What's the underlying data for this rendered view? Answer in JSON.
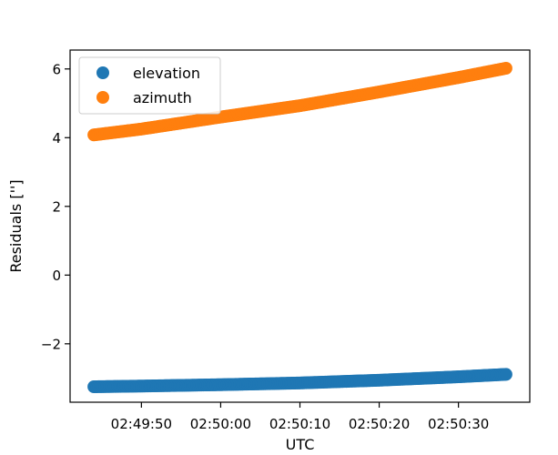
{
  "chart_data": {
    "type": "scatter",
    "title": "",
    "xlabel": "UTC",
    "ylabel": "Residuals ['']",
    "xlim": [
      "02:49:41",
      "02:50:39"
    ],
    "ylim": [
      -3.7,
      6.55
    ],
    "xticks": [
      "02:49:50",
      "02:50:00",
      "02:50:10",
      "02:50:20",
      "02:50:30"
    ],
    "yticks": [
      -2,
      0,
      2,
      4,
      6
    ],
    "ytick_labels": [
      "−2",
      "0",
      "2",
      "4",
      "6"
    ],
    "grid": false,
    "legend_position": "upper-left",
    "series": [
      {
        "name": "elevation",
        "color": "#1f77b4",
        "x_start": "02:49:44",
        "x_end": "02:50:36",
        "x": [
          "02:49:44",
          "02:49:50",
          "02:50:00",
          "02:50:10",
          "02:50:20",
          "02:50:30",
          "02:50:36"
        ],
        "y": [
          -3.25,
          -3.23,
          -3.19,
          -3.14,
          -3.06,
          -2.96,
          -2.89
        ]
      },
      {
        "name": "azimuth",
        "color": "#ff7f0e",
        "x_start": "02:49:44",
        "x_end": "02:50:36",
        "x": [
          "02:49:44",
          "02:49:50",
          "02:50:00",
          "02:50:10",
          "02:50:20",
          "02:50:30",
          "02:50:36"
        ],
        "y": [
          4.08,
          4.25,
          4.6,
          4.93,
          5.33,
          5.75,
          6.02
        ]
      }
    ]
  }
}
